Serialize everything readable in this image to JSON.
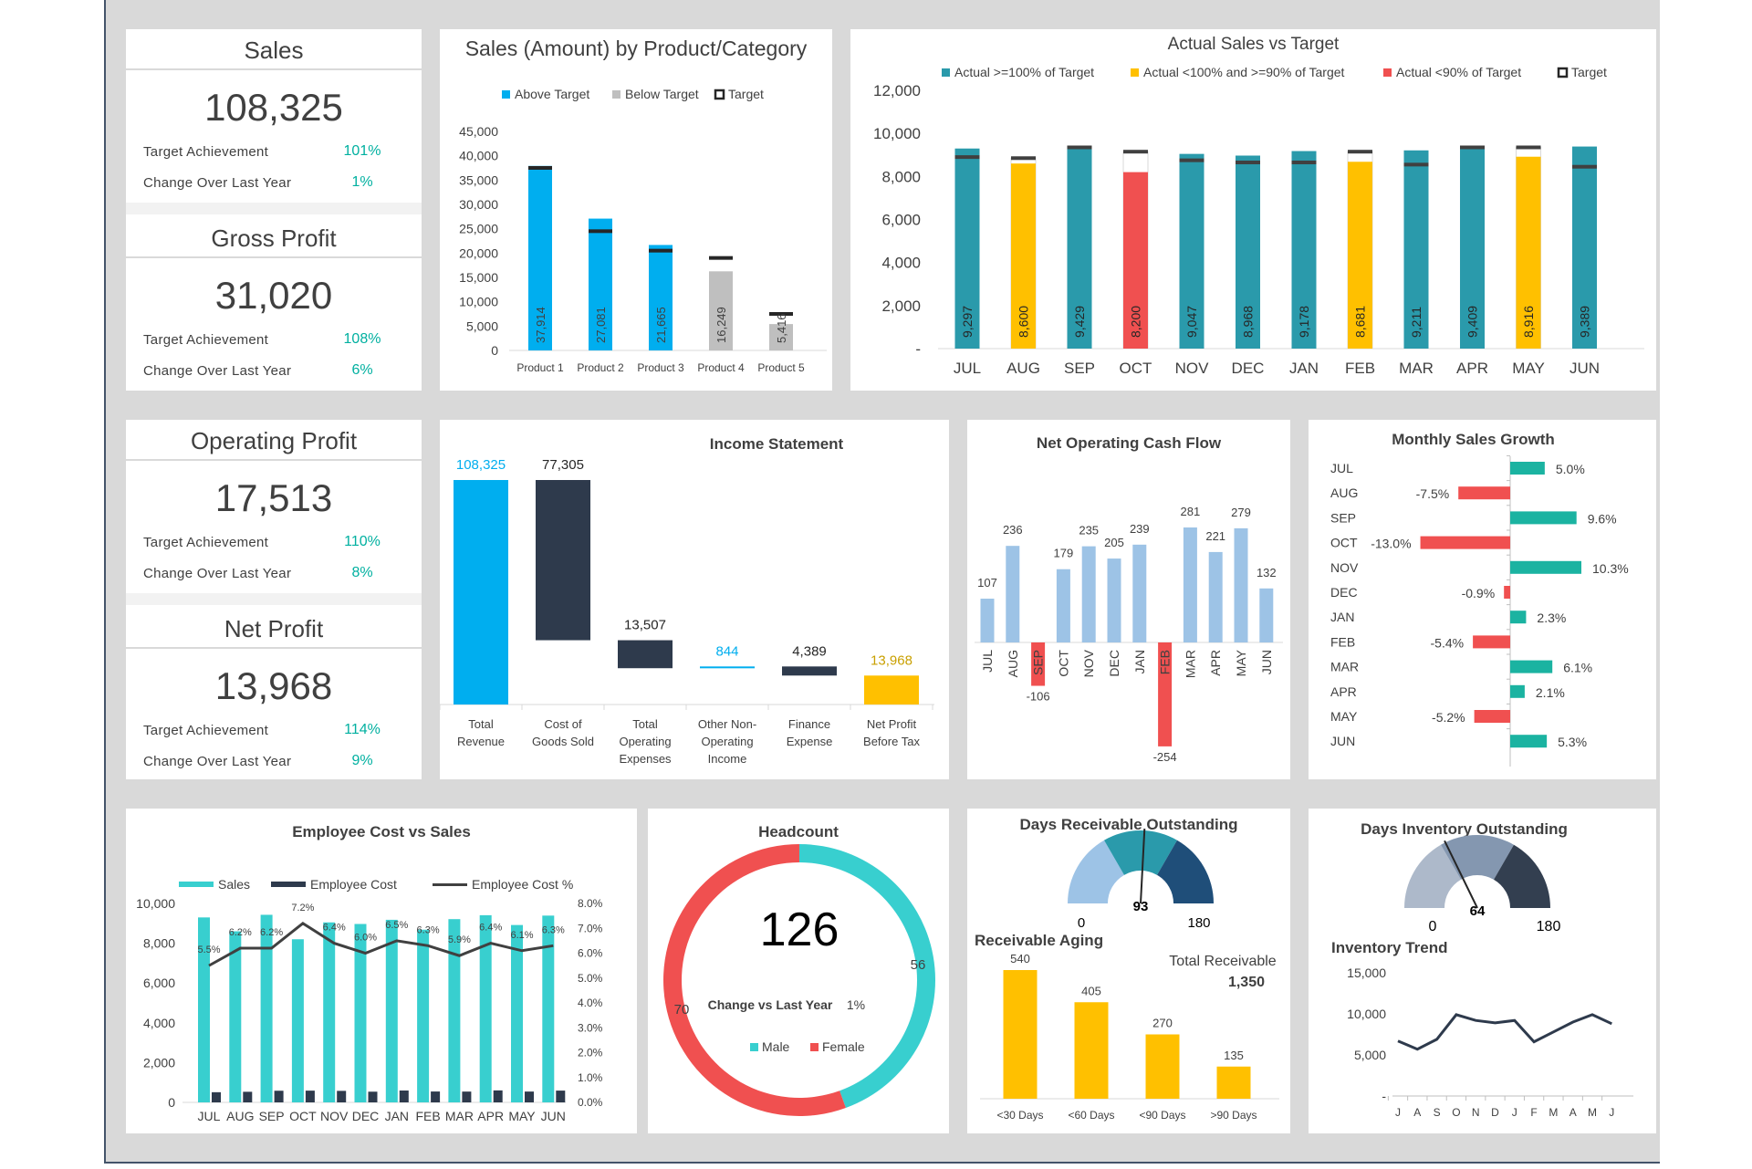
{
  "kpis": [
    {
      "title": "Sales",
      "value": "108,325",
      "target_label": "Target Achievement",
      "target_pct": "101%",
      "change_label": "Change Over Last Year",
      "change_pct": "1%"
    },
    {
      "title": "Gross Profit",
      "value": "31,020",
      "target_label": "Target Achievement",
      "target_pct": "108%",
      "change_label": "Change Over Last Year",
      "change_pct": "6%"
    },
    {
      "title": "Operating Profit",
      "value": "17,513",
      "target_label": "Target Achievement",
      "target_pct": "110%",
      "change_label": "Change Over Last Year",
      "change_pct": "8%"
    },
    {
      "title": "Net Profit",
      "value": "13,968",
      "target_label": "Target Achievement",
      "target_pct": "114%",
      "change_label": "Change Over Last Year",
      "change_pct": "9%"
    }
  ],
  "colors": {
    "teal": "#2a9aab",
    "blue": "#00aeef",
    "grey": "#bfbfbf",
    "yellow": "#ffc000",
    "red": "#f05050",
    "navy": "#2e3a4c",
    "lightblue": "#9dc3e6",
    "green": "#1bb3a1",
    "cyan": "#38cfcf"
  },
  "chart_data": [
    {
      "id": "product",
      "type": "bar",
      "title": "Sales (Amount) by Product/Category",
      "legend": [
        "Above Target",
        "Below Target",
        "Target"
      ],
      "categories": [
        "Product 1",
        "Product 2",
        "Product 3",
        "Product 4",
        "Product 5"
      ],
      "values": [
        37914,
        27081,
        21665,
        16249,
        5416
      ],
      "value_labels": [
        "37,914",
        "27,081",
        "21,665",
        "16,249",
        "5,416"
      ],
      "targets": [
        37500,
        24500,
        20500,
        19000,
        7500
      ],
      "status": [
        "above",
        "above",
        "above",
        "below",
        "below"
      ],
      "ylim": [
        0,
        45000
      ],
      "yticks": [
        "45,000",
        "40,000",
        "35,000",
        "30,000",
        "25,000",
        "20,000",
        "15,000",
        "10,000",
        "5,000",
        "0"
      ]
    },
    {
      "id": "actual",
      "type": "bar",
      "title": "Actual Sales vs Target",
      "legend": [
        "Actual >=100% of Target",
        "Actual <100% and >=90% of Target",
        "Actual <90% of Target",
        "Target"
      ],
      "categories": [
        "JUL",
        "AUG",
        "SEP",
        "OCT",
        "NOV",
        "DEC",
        "JAN",
        "FEB",
        "MAR",
        "APR",
        "MAY",
        "JUN"
      ],
      "values": [
        9297,
        8600,
        9429,
        8200,
        9047,
        8968,
        9178,
        8681,
        9211,
        9409,
        8916,
        9389
      ],
      "value_labels": [
        "9,297",
        "8,600",
        "9,429",
        "8,200",
        "9,047",
        "8,968",
        "9,178",
        "8,681",
        "9,211",
        "9,409",
        "8,916",
        "9,389"
      ],
      "targets": [
        8900,
        8850,
        9350,
        9150,
        8750,
        8650,
        8650,
        9150,
        8550,
        9350,
        9350,
        8450
      ],
      "status": [
        "ok",
        "mid",
        "ok",
        "low",
        "ok",
        "ok",
        "ok",
        "mid",
        "ok",
        "ok",
        "mid",
        "ok"
      ],
      "ylim": [
        0,
        12000
      ],
      "yticks": [
        "12,000",
        "10,000",
        "8,000",
        "6,000",
        "4,000",
        "2,000",
        "-"
      ]
    },
    {
      "id": "income",
      "type": "bar",
      "title": "Income Statement",
      "categories": [
        "Total Revenue",
        "Cost of Goods Sold",
        "Total Operating Expenses",
        "Other Non-Operating Income",
        "Finance Expense",
        "Net Profit Before Tax"
      ],
      "values": [
        108325,
        77305,
        13507,
        844,
        4389,
        13968
      ],
      "value_labels": [
        "108,325",
        "77,305",
        "13,507",
        "844",
        "4,389",
        "13,968"
      ]
    },
    {
      "id": "cashflow",
      "type": "bar",
      "title": "Net Operating Cash Flow",
      "categories": [
        "JUL",
        "AUG",
        "SEP",
        "OCT",
        "NOV",
        "DEC",
        "JAN",
        "FEB",
        "MAR",
        "APR",
        "MAY",
        "JUN"
      ],
      "values": [
        107,
        236,
        -106,
        179,
        235,
        205,
        239,
        -254,
        281,
        221,
        279,
        132
      ]
    },
    {
      "id": "growth",
      "type": "bar",
      "title": "Monthly Sales Growth",
      "categories": [
        "JUL",
        "AUG",
        "SEP",
        "OCT",
        "NOV",
        "DEC",
        "JAN",
        "FEB",
        "MAR",
        "APR",
        "MAY",
        "JUN"
      ],
      "values": [
        5.0,
        -7.5,
        9.6,
        -13.0,
        10.3,
        -0.9,
        2.3,
        -5.4,
        6.1,
        2.1,
        -5.2,
        5.3
      ],
      "value_labels": [
        "5.0%",
        "-7.5%",
        "9.6%",
        "-13.0%",
        "10.3%",
        "-0.9%",
        "2.3%",
        "-5.4%",
        "6.1%",
        "2.1%",
        "-5.2%",
        "5.3%"
      ]
    },
    {
      "id": "employee",
      "type": "bar",
      "title": "Employee Cost vs Sales",
      "legend": [
        "Sales",
        "Employee Cost",
        "Employee Cost %"
      ],
      "categories": [
        "JUL",
        "AUG",
        "SEP",
        "OCT",
        "NOV",
        "DEC",
        "JAN",
        "FEB",
        "MAR",
        "APR",
        "MAY",
        "JUN"
      ],
      "sales": [
        9297,
        8600,
        9429,
        8200,
        9047,
        8968,
        9178,
        8681,
        9211,
        9409,
        8916,
        9389
      ],
      "cost": [
        511,
        533,
        585,
        590,
        579,
        538,
        597,
        547,
        543,
        602,
        544,
        592
      ],
      "pct": [
        5.5,
        6.2,
        6.2,
        7.2,
        6.4,
        6.0,
        6.5,
        6.3,
        5.9,
        6.4,
        6.1,
        6.3
      ],
      "pct_labels": [
        "5.5%",
        "6.2%",
        "6.2%",
        "7.2%",
        "6.4%",
        "6.0%",
        "6.5%",
        "6.3%",
        "5.9%",
        "6.4%",
        "6.1%",
        "6.3%"
      ],
      "ylim": [
        0,
        10000
      ],
      "yticks": [
        "10,000",
        "8,000",
        "6,000",
        "4,000",
        "2,000",
        "0"
      ],
      "y2ticks": [
        "8.0%",
        "7.0%",
        "6.0%",
        "5.0%",
        "4.0%",
        "3.0%",
        "2.0%",
        "1.0%",
        "0.0%"
      ]
    },
    {
      "id": "headcount",
      "type": "pie",
      "title": "Headcount",
      "total": "126",
      "change_label": "Change vs Last Year",
      "change_value": "1%",
      "legend": [
        "Male",
        "Female"
      ],
      "values": [
        56,
        70
      ]
    },
    {
      "id": "receivable",
      "type": "bar",
      "title": "Days Receivable Outstanding",
      "gauge_value": "93",
      "gauge_min": "0",
      "gauge_max": "180",
      "subtitle": "Receivable Aging",
      "total_label": "Total Receivable",
      "total_value": "1,350",
      "categories": [
        "<30 Days",
        "<60 Days",
        "<90 Days",
        ">90 Days"
      ],
      "values": [
        540,
        405,
        270,
        135
      ]
    },
    {
      "id": "inventory",
      "type": "line",
      "title": "Days Inventory Outstanding",
      "gauge_value": "64",
      "gauge_min": "0",
      "gauge_max": "180",
      "subtitle": "Inventory Trend",
      "categories": [
        "J",
        "A",
        "S",
        "O",
        "N",
        "D",
        "J",
        "F",
        "M",
        "A",
        "M",
        "J"
      ],
      "values": [
        6700,
        5700,
        6900,
        9900,
        9200,
        8900,
        9200,
        6600,
        7800,
        9000,
        9900,
        8800
      ],
      "ylim": [
        0,
        15000
      ],
      "yticks": [
        "15,000",
        "10,000",
        "5,000",
        "-"
      ]
    }
  ]
}
